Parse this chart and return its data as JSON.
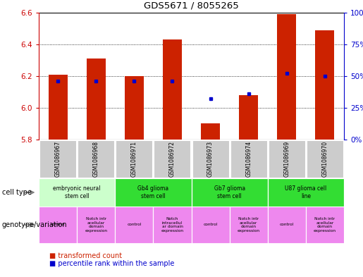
{
  "title": "GDS5671 / 8055265",
  "samples": [
    "GSM1086967",
    "GSM1086968",
    "GSM1086971",
    "GSM1086972",
    "GSM1086973",
    "GSM1086974",
    "GSM1086969",
    "GSM1086970"
  ],
  "red_values": [
    6.21,
    6.31,
    6.2,
    6.43,
    5.9,
    6.08,
    6.59,
    6.49
  ],
  "blue_values": [
    46,
    46,
    46,
    46,
    32,
    36,
    52,
    50
  ],
  "ylim_left": [
    5.8,
    6.6
  ],
  "ylim_right": [
    0,
    100
  ],
  "yticks_left": [
    5.8,
    6.0,
    6.2,
    6.4,
    6.6
  ],
  "yticks_right": [
    0,
    25,
    50,
    75,
    100
  ],
  "cell_types": [
    {
      "label": "embryonic neural\nstem cell",
      "span": [
        0,
        2
      ],
      "color": "#ccffcc"
    },
    {
      "label": "Gb4 glioma\nstem cell",
      "span": [
        2,
        4
      ],
      "color": "#33dd33"
    },
    {
      "label": "Gb7 glioma\nstem cell",
      "span": [
        4,
        6
      ],
      "color": "#33dd33"
    },
    {
      "label": "U87 glioma cell\nline",
      "span": [
        6,
        8
      ],
      "color": "#33dd33"
    }
  ],
  "genotypes": [
    {
      "label": "control",
      "span": [
        0,
        1
      ],
      "color": "#ee88ee"
    },
    {
      "label": "Notch intr\nacellular\ndomain\nexpression",
      "span": [
        1,
        2
      ],
      "color": "#ee88ee"
    },
    {
      "label": "control",
      "span": [
        2,
        3
      ],
      "color": "#ee88ee"
    },
    {
      "label": "Notch\nintracellul\nar domain\nexpression",
      "span": [
        3,
        4
      ],
      "color": "#ee88ee"
    },
    {
      "label": "control",
      "span": [
        4,
        5
      ],
      "color": "#ee88ee"
    },
    {
      "label": "Notch intr\nacellular\ndomain\nexpression",
      "span": [
        5,
        6
      ],
      "color": "#ee88ee"
    },
    {
      "label": "control",
      "span": [
        6,
        7
      ],
      "color": "#ee88ee"
    },
    {
      "label": "Notch intr\nacellular\ndomain\nexpression",
      "span": [
        7,
        8
      ],
      "color": "#ee88ee"
    }
  ],
  "bar_color": "#cc2200",
  "dot_color": "#0000cc",
  "label_color_left": "#cc0000",
  "label_color_right": "#0000cc",
  "grid_color": "black"
}
